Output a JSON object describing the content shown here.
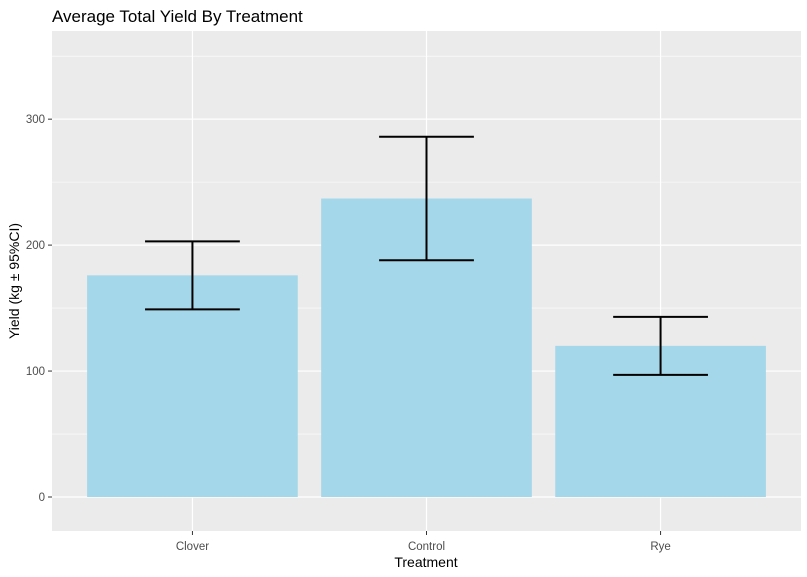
{
  "chart_data": {
    "type": "bar",
    "title": "Average Total Yield By Treatment",
    "xlabel": "Treatment",
    "ylabel": "Yield (kg ± 95%CI)",
    "categories": [
      "Clover",
      "Control",
      "Rye"
    ],
    "values": [
      176,
      237,
      120
    ],
    "ci_lower": [
      149,
      188,
      97
    ],
    "ci_upper": [
      203,
      286,
      143
    ],
    "ylim": [
      -27,
      370
    ],
    "y_ticks": [
      0,
      100,
      200,
      300
    ],
    "grid": true,
    "legend": "none",
    "colors": {
      "bar": "#a5d7ea",
      "panel": "#ebebeb",
      "grid": "#ffffff",
      "errorbar": "#000000"
    }
  }
}
